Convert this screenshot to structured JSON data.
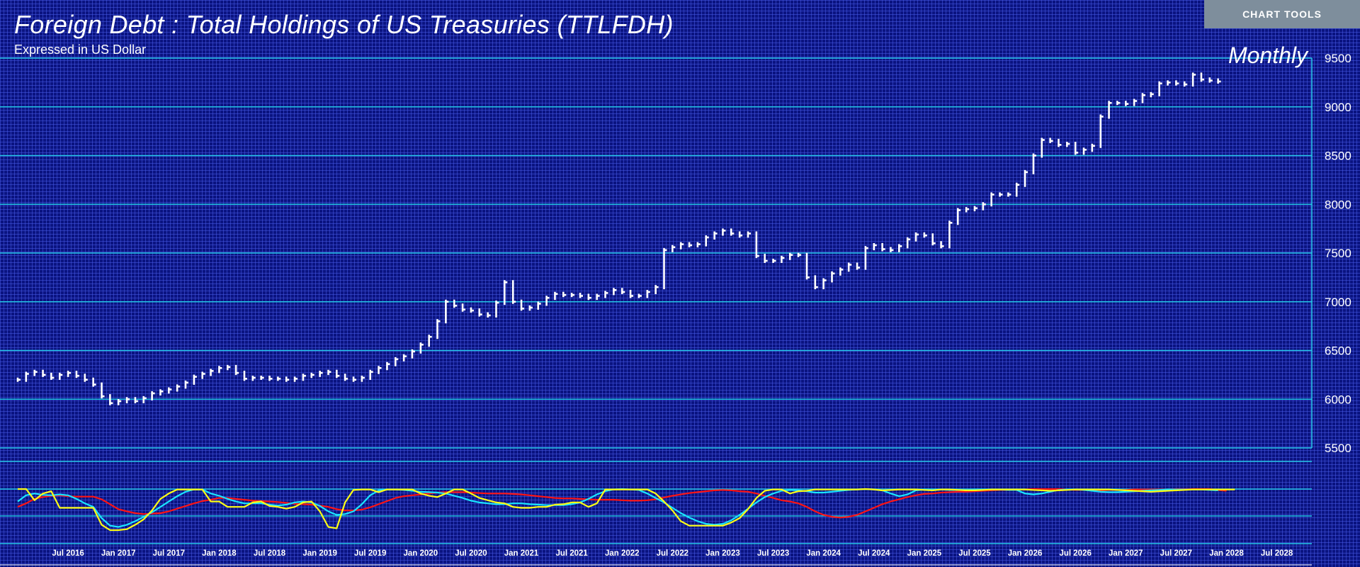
{
  "header": {
    "title": "Foreign Debt : Total Holdings of US Treasuries (TTLFDH)",
    "subtitle": "Expressed in US Dollar",
    "frequency": "Monthly",
    "chart_tools_label": "CHART TOOLS"
  },
  "colors": {
    "background": "#0a1380",
    "gridline": "#24c6e6",
    "price_bar": "#ffffff",
    "osc_red": "#ff1414",
    "osc_cyan": "#19e6ff",
    "osc_yellow": "#ffff14",
    "button": "#7e8e9c"
  },
  "chart_data": [
    {
      "type": "bar",
      "title": "Foreign Debt : Total Holdings of US Treasuries (TTLFDH)",
      "subtitle": "Expressed in US Dollar",
      "frequency": "Monthly",
      "ylim": [
        5500,
        9500
      ],
      "y_ticks": [
        5500,
        6000,
        6500,
        7000,
        7500,
        8000,
        8500,
        9000,
        9500
      ],
      "x_ticks": [
        "Jul 2016",
        "Jan 2017",
        "Jul 2017",
        "Jan 2018",
        "Jul 2018",
        "Jan 2019",
        "Jul 2019",
        "Jan 2020",
        "Jul 2020",
        "Jan 2021",
        "Jul 2021",
        "Jan 2022",
        "Jul 2022",
        "Jan 2023",
        "Jul 2023",
        "Jan 2024",
        "Jul 2024",
        "Jan 2025",
        "Jul 2025",
        "Jan 2026",
        "Jul 2026",
        "Jan 2027",
        "Jul 2027",
        "Jan 2028",
        "Jul 2028"
      ],
      "x_range": [
        "2016-01",
        "2028-11"
      ],
      "grid": true,
      "series": [
        {
          "start": "2016-01",
          "values": [
            6200,
            6260,
            6280,
            6250,
            6220,
            6250,
            6270,
            6240,
            6200,
            6150,
            6030,
            5960,
            5980,
            6000,
            5980,
            6010,
            6060,
            6080,
            6100,
            6130,
            6170,
            6230,
            6260,
            6290,
            6320,
            6330,
            6270,
            6210,
            6220,
            6220,
            6210,
            6210,
            6200,
            6210,
            6240,
            6250,
            6270,
            6280,
            6240,
            6210,
            6200,
            6220,
            6280,
            6320,
            6360,
            6410,
            6440,
            6490,
            6560,
            6640,
            6800,
            7000,
            6960,
            6920,
            6910,
            6870,
            6860,
            6990,
            7200,
            7000,
            6930,
            6940,
            6980,
            7040,
            7080,
            7070,
            7070,
            7060,
            7040,
            7060,
            7090,
            7120,
            7100,
            7060,
            7060,
            7100,
            7150,
            7530,
            7560,
            7590,
            7580,
            7590,
            7660,
            7700,
            7730,
            7700,
            7680,
            7700,
            7470,
            7420,
            7420,
            7450,
            7480,
            7480,
            7250,
            7150,
            7220,
            7290,
            7330,
            7380,
            7350,
            7550,
            7580,
            7540,
            7530,
            7570,
            7640,
            7690,
            7680,
            7600,
            7570,
            7810,
            7940,
            7950,
            7960,
            8000,
            8100,
            8100,
            8100,
            8200,
            8330,
            8500,
            8660,
            8650,
            8610,
            8620,
            8530,
            8560,
            8600,
            8900,
            9040,
            9040,
            9030,
            9060,
            9120,
            9130,
            9240,
            9250,
            9240,
            9230,
            9330,
            9280,
            9270,
            9260
          ]
        }
      ]
    },
    {
      "type": "line",
      "title": "",
      "ylim": [
        0,
        1
      ],
      "series": [
        {
          "color": "#ff1414",
          "start": "2016-01",
          "values": [
            0.6,
            0.68,
            0.78,
            0.82,
            0.85,
            0.86,
            0.84,
            0.83,
            0.83,
            0.83,
            0.77,
            0.66,
            0.55,
            0.5,
            0.46,
            0.44,
            0.45,
            0.46,
            0.5,
            0.56,
            0.62,
            0.68,
            0.73,
            0.76,
            0.8,
            0.8,
            0.78,
            0.76,
            0.74,
            0.73,
            0.72,
            0.71,
            0.69,
            0.67,
            0.66,
            0.65,
            0.63,
            0.6,
            0.55,
            0.52,
            0.52,
            0.54,
            0.59,
            0.66,
            0.73,
            0.8,
            0.84,
            0.86,
            0.88,
            0.9,
            0.92,
            0.93,
            0.93,
            0.93,
            0.92,
            0.91,
            0.9,
            0.9,
            0.9,
            0.89,
            0.88,
            0.86,
            0.84,
            0.82,
            0.8,
            0.79,
            0.79,
            0.78,
            0.77,
            0.76,
            0.76,
            0.76,
            0.75,
            0.74,
            0.74,
            0.75,
            0.77,
            0.81,
            0.85,
            0.88,
            0.91,
            0.93,
            0.95,
            0.97,
            0.98,
            0.97,
            0.95,
            0.94,
            0.9,
            0.85,
            0.8,
            0.75,
            0.72,
            0.68,
            0.6,
            0.5,
            0.42,
            0.38,
            0.36,
            0.38,
            0.42,
            0.5,
            0.58,
            0.66,
            0.72,
            0.77,
            0.82,
            0.86,
            0.89,
            0.9,
            0.92,
            0.93,
            0.94,
            0.94,
            0.95,
            0.96,
            0.97,
            0.98,
            0.98,
            0.99,
            0.99,
            1.0,
            1.0,
            1.0,
            1.0,
            0.99,
            0.98,
            0.98,
            0.97,
            0.97,
            0.98,
            0.98,
            0.98,
            0.99,
            0.99,
            0.99,
            0.99,
            0.99,
            1.0,
            1.0,
            1.0,
            1.0,
            1.0,
            0.98,
            0.96
          ]
        },
        {
          "color": "#19e6ff",
          "start": "2016-01",
          "values": [
            0.72,
            0.86,
            0.9,
            0.87,
            0.86,
            0.88,
            0.86,
            0.78,
            0.68,
            0.6,
            0.35,
            0.18,
            0.15,
            0.2,
            0.28,
            0.38,
            0.48,
            0.6,
            0.72,
            0.84,
            0.94,
            0.99,
            0.99,
            0.9,
            0.85,
            0.78,
            0.72,
            0.68,
            0.68,
            0.68,
            0.65,
            0.63,
            0.65,
            0.7,
            0.72,
            0.7,
            0.62,
            0.5,
            0.42,
            0.44,
            0.5,
            0.66,
            0.86,
            0.97,
            0.99,
            0.99,
            0.98,
            0.96,
            0.94,
            0.93,
            0.92,
            0.9,
            0.85,
            0.8,
            0.74,
            0.7,
            0.68,
            0.66,
            0.66,
            0.68,
            0.68,
            0.66,
            0.65,
            0.64,
            0.64,
            0.64,
            0.66,
            0.7,
            0.78,
            0.88,
            0.95,
            0.99,
            1.0,
            0.99,
            0.98,
            0.9,
            0.8,
            0.7,
            0.58,
            0.46,
            0.36,
            0.28,
            0.22,
            0.2,
            0.22,
            0.3,
            0.42,
            0.56,
            0.7,
            0.82,
            0.9,
            0.96,
            0.98,
            0.97,
            0.95,
            0.92,
            0.92,
            0.94,
            0.96,
            0.98,
            0.99,
            1.0,
            0.99,
            0.97,
            0.9,
            0.84,
            0.88,
            0.97,
            0.99,
            0.99,
            0.99,
            0.98,
            0.98,
            0.98,
            0.99,
            0.99,
            0.99,
            0.99,
            0.98,
            0.98,
            0.9,
            0.88,
            0.9,
            0.94,
            0.98,
            0.99,
            0.99,
            0.98,
            0.96,
            0.94,
            0.93,
            0.93,
            0.94,
            0.95,
            0.96,
            0.97,
            0.98,
            0.99,
            0.99,
            0.99,
            0.99,
            0.99,
            0.98,
            0.97
          ]
        },
        {
          "color": "#ffff14",
          "start": "2016-01",
          "values": [
            1.0,
            1.0,
            0.75,
            0.9,
            0.95,
            0.58,
            0.58,
            0.58,
            0.58,
            0.58,
            0.2,
            0.08,
            0.08,
            0.1,
            0.2,
            0.32,
            0.52,
            0.78,
            0.9,
            0.99,
            0.99,
            0.99,
            0.99,
            0.72,
            0.72,
            0.6,
            0.6,
            0.6,
            0.7,
            0.72,
            0.62,
            0.6,
            0.56,
            0.6,
            0.7,
            0.72,
            0.5,
            0.15,
            0.12,
            0.7,
            0.98,
            0.99,
            0.99,
            0.93,
            0.99,
            0.99,
            0.99,
            0.99,
            0.9,
            0.85,
            0.82,
            0.9,
            0.99,
            0.99,
            0.9,
            0.8,
            0.75,
            0.7,
            0.68,
            0.6,
            0.58,
            0.58,
            0.6,
            0.6,
            0.65,
            0.66,
            0.7,
            0.7,
            0.6,
            0.68,
            0.99,
            0.99,
            0.99,
            0.99,
            0.99,
            0.99,
            0.9,
            0.72,
            0.52,
            0.28,
            0.18,
            0.18,
            0.18,
            0.18,
            0.18,
            0.25,
            0.35,
            0.55,
            0.8,
            0.96,
            0.99,
            0.99,
            0.9,
            0.95,
            0.96,
            0.99,
            0.99,
            0.99,
            0.99,
            0.99,
            0.99,
            1.0,
            0.99,
            0.97,
            0.98,
            0.99,
            0.99,
            0.99,
            0.98,
            0.97,
            0.99,
            0.99,
            0.98,
            0.97,
            0.97,
            0.98,
            0.99,
            0.99,
            0.99,
            0.99,
            0.99,
            0.98,
            0.97,
            0.96,
            0.97,
            0.98,
            0.99,
            0.99,
            0.99,
            0.99,
            0.99,
            0.98,
            0.97,
            0.96,
            0.95,
            0.94,
            0.95,
            0.96,
            0.97,
            0.98,
            0.99,
            0.99,
            0.99,
            0.99,
            0.99,
            0.99
          ]
        }
      ]
    }
  ]
}
